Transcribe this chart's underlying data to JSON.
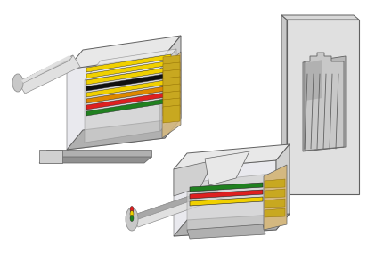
{
  "background_color": "#ffffff",
  "fig_width": 4.12,
  "fig_height": 2.84,
  "dpi": 100,
  "colors": {
    "body_light": "#e8e8e8",
    "body_mid": "#d0d0d0",
    "body_dark": "#b0b0b0",
    "body_darker": "#909090",
    "body_shadow": "#787878",
    "transparent_face": "#d8d8e0",
    "cable_light": "#e0e0e0",
    "cable_mid": "#c8c8c8",
    "cable_dark": "#a8a8a8",
    "wire_yellow": "#f0d000",
    "wire_green": "#208020",
    "wire_red": "#dd2020",
    "wire_black": "#101010",
    "wire_beige": "#d4b880",
    "gold": "#c8a820",
    "edge": "#606060",
    "edge_light": "#909090"
  }
}
